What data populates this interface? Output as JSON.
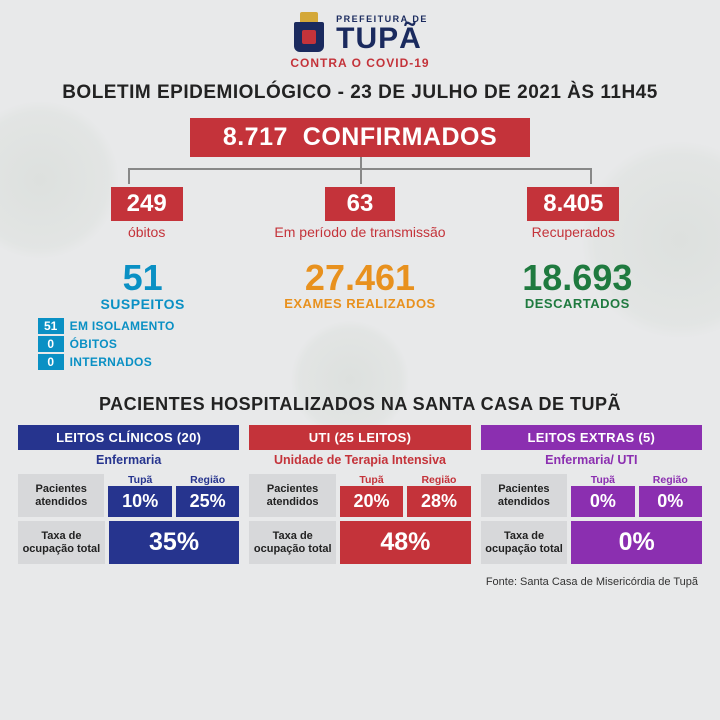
{
  "colors": {
    "red": "#c4333a",
    "navy": "#1a2a5e",
    "blue": "#26348e",
    "cyan": "#0a90c4",
    "orange": "#e8911e",
    "green": "#1f7a3f",
    "purple": "#8b2fb0",
    "bg": "#e8e9ea",
    "label_bg": "#d7d8da"
  },
  "brand": {
    "prefeitura": "PREFEITURA DE",
    "name": "TUPÃ",
    "tagline": "CONTRA O COVID-19"
  },
  "title": "BOLETIM EPIDEMIOLÓGICO - 23 DE JULHO DE 2021 ÀS 11H45",
  "confirmed": {
    "value": "8.717",
    "label": "CONFIRMADOS"
  },
  "tree": [
    {
      "value": "249",
      "label": "óbitos"
    },
    {
      "value": "63",
      "label": "Em período de transmissão"
    },
    {
      "value": "8.405",
      "label": "Recuperados"
    }
  ],
  "suspeitos": {
    "value": "51",
    "label": "SUSPEITOS",
    "items": [
      {
        "n": "51",
        "t": "EM ISOLAMENTO"
      },
      {
        "n": "0",
        "t": "ÓBITOS"
      },
      {
        "n": "0",
        "t": "INTERNADOS"
      }
    ]
  },
  "exames": {
    "value": "27.461",
    "label": "EXAMES REALIZADOS"
  },
  "descartados": {
    "value": "18.693",
    "label": "DESCARTADOS"
  },
  "hosp_title": "PACIENTES HOSPITALIZADOS NA SANTA CASA DE TUPÃ",
  "col_labels": {
    "a": "Tupã",
    "b": "Região"
  },
  "row_labels": {
    "atendidos": "Pacientes\natendidos",
    "taxa": "Taxa de\nocupação total"
  },
  "panels": {
    "clinicos": {
      "header": "LEITOS CLÍNICOS (20)",
      "sub": "Enfermaria",
      "tupa": "10%",
      "regiao": "25%",
      "total": "35%"
    },
    "uti": {
      "header": "UTI (25 LEITOS)",
      "sub": "Unidade de Terapia Intensiva",
      "tupa": "20%",
      "regiao": "28%",
      "total": "48%"
    },
    "extras": {
      "header": "LEITOS EXTRAS (5)",
      "sub": "Enfermaria/ UTI",
      "tupa": "0%",
      "regiao": "0%",
      "total": "0%"
    }
  },
  "source": "Fonte: Santa Casa de Misericórdia de Tupã"
}
